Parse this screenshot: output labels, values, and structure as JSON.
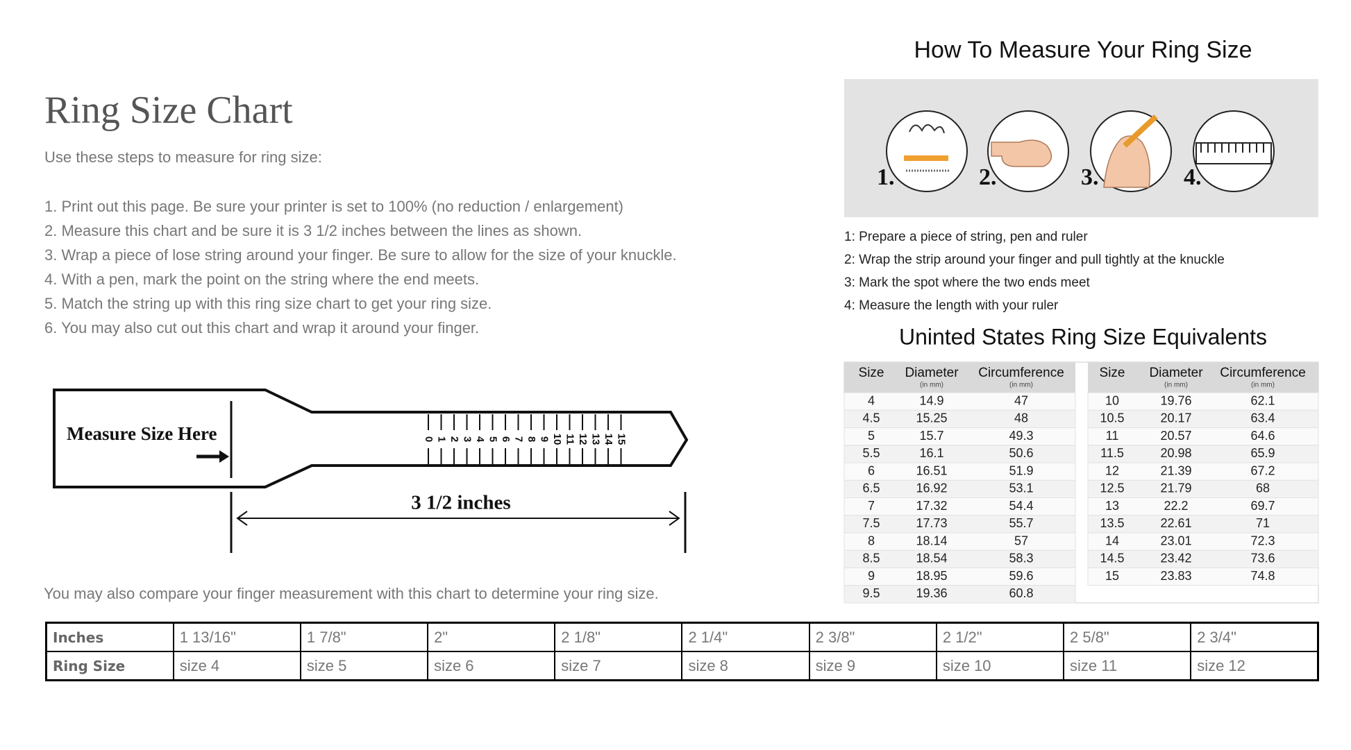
{
  "left": {
    "title": "Ring Size Chart",
    "intro": "Use these steps to measure for ring size:",
    "steps": [
      "1. Print out this page. Be sure your printer is set to 100% (no reduction / enlargement)",
      "2. Measure this chart and be sure it is 3 1/2 inches between the lines as shown.",
      "3. Wrap a piece of lose string around your finger. Be sure to allow for the size of your knuckle.",
      "4. With a pen, mark the point on the string where the end meets.",
      "5. Match the string up with this ring size chart to get your ring size.",
      "6. You may also cut out this chart and wrap it around your finger."
    ],
    "ruler": {
      "label": "Measure Size Here",
      "scale": [
        0,
        1,
        2,
        3,
        4,
        5,
        6,
        7,
        8,
        9,
        10,
        11,
        12,
        13,
        14,
        15
      ],
      "length": "3 1/2 inches"
    },
    "note": "You may also compare your finger measurement with this chart to determine your ring size."
  },
  "size_table": {
    "rows": [
      [
        "Inches",
        "1 13/16\"",
        "1 7/8\"",
        "2\"",
        "2 1/8\"",
        "2 1/4\"",
        "2 3/8\"",
        "2 1/2\"",
        "2 5/8\"",
        "2 3/4\""
      ],
      [
        "Ring Size",
        "size 4",
        "size 5",
        "size 6",
        "size 7",
        "size 8",
        "size 9",
        "size 10",
        "size 11",
        "size 12"
      ]
    ]
  },
  "right": {
    "title": "How To Measure Your Ring Size",
    "step_numbers": [
      "1.",
      "2.",
      "3.",
      "4."
    ],
    "steps": [
      "1: Prepare a piece of string, pen and ruler",
      "2: Wrap the strip around your finger and pull tightly at the knuckle",
      "3: Mark the spot where the two ends meet",
      "4: Measure the length with your ruler"
    ],
    "equivalents": {
      "title": "Uninted States Ring Size Equivalents",
      "headers": [
        {
          "name": "Size"
        },
        {
          "name": "Diameter",
          "unit": "(in mm)"
        },
        {
          "name": "Circumference",
          "unit": "(in mm)"
        }
      ],
      "left_rows": [
        [
          "4",
          "14.9",
          "47"
        ],
        [
          "4.5",
          "15.25",
          "48"
        ],
        [
          "5",
          "15.7",
          "49.3"
        ],
        [
          "5.5",
          "16.1",
          "50.6"
        ],
        [
          "6",
          "16.51",
          "51.9"
        ],
        [
          "6.5",
          "16.92",
          "53.1"
        ],
        [
          "7",
          "17.32",
          "54.4"
        ],
        [
          "7.5",
          "17.73",
          "55.7"
        ],
        [
          "8",
          "18.14",
          "57"
        ],
        [
          "8.5",
          "18.54",
          "58.3"
        ],
        [
          "9",
          "18.95",
          "59.6"
        ],
        [
          "9.5",
          "19.36",
          "60.8"
        ]
      ],
      "right_rows": [
        [
          "10",
          "19.76",
          "62.1"
        ],
        [
          "10.5",
          "20.17",
          "63.4"
        ],
        [
          "11",
          "20.57",
          "64.6"
        ],
        [
          "11.5",
          "20.98",
          "65.9"
        ],
        [
          "12",
          "21.39",
          "67.2"
        ],
        [
          "12.5",
          "21.79",
          "68"
        ],
        [
          "13",
          "22.2",
          "69.7"
        ],
        [
          "13.5",
          "22.61",
          "71"
        ],
        [
          "14",
          "23.01",
          "72.3"
        ],
        [
          "14.5",
          "23.42",
          "73.6"
        ],
        [
          "15",
          "23.83",
          "74.8"
        ]
      ]
    }
  }
}
